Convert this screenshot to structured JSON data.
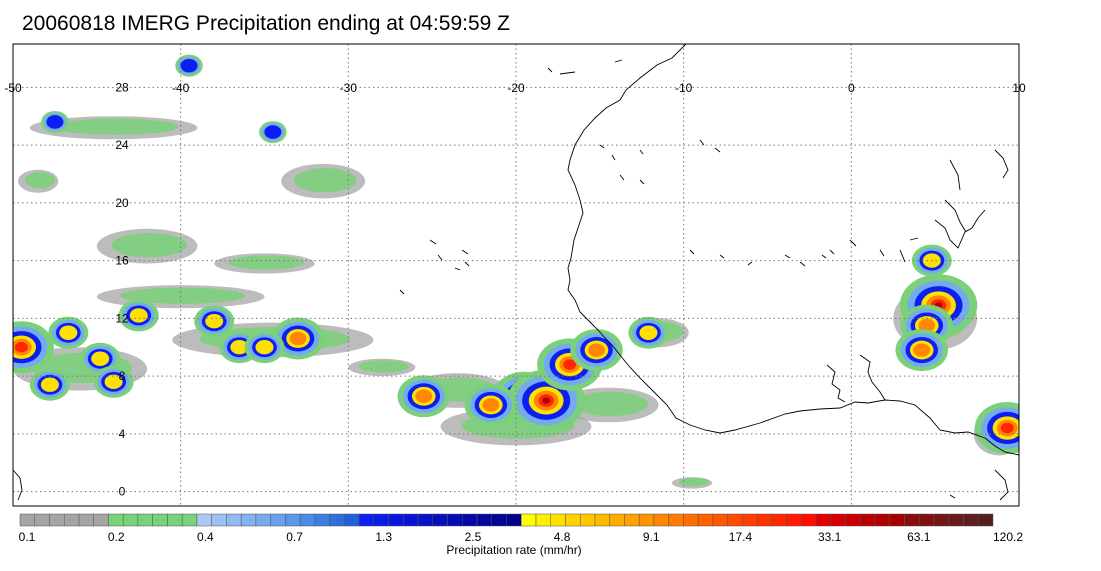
{
  "title": "20060818 IMERG Precipitation ending at 04:59:59 Z",
  "map": {
    "lon_range": [
      -50,
      10
    ],
    "lat_range": [
      -1,
      31
    ],
    "lon_ticks": [
      "-50",
      "-40",
      "-30",
      "-20",
      "-10",
      "0",
      "10"
    ],
    "lat_ticks": [
      "28",
      "24",
      "20",
      "16",
      "12",
      "8",
      "4",
      "0"
    ],
    "grid": "dotted",
    "coastline_color": "#000000"
  },
  "colorbar": {
    "label": "Precipitation rate (mm/hr)",
    "tick_labels": [
      "0.1",
      "0.2",
      "0.4",
      "0.7",
      "1.3",
      "2.5",
      "4.8",
      "9.1",
      "17.4",
      "33.1",
      "63.1",
      "120.2"
    ],
    "colors": [
      "#a5a5a5",
      "#a5a5a5",
      "#a5a5a5",
      "#a5a5a5",
      "#a5a5a5",
      "#a5a5a5",
      "#7ad17a",
      "#7ad17a",
      "#7ad17a",
      "#7ad17a",
      "#7ad17a",
      "#7ad17a",
      "#a9c8f5",
      "#9cc2f5",
      "#8fbaf3",
      "#83b2f1",
      "#76aaee",
      "#69a2ec",
      "#5a97ea",
      "#4b8be6",
      "#3c7ee2",
      "#2e6fde",
      "#2360db",
      "#0b1ff2",
      "#0a1be8",
      "#0917dd",
      "#0814d3",
      "#0711c8",
      "#060ebd",
      "#050bb3",
      "#0408a8",
      "#03069f",
      "#020495",
      "#01028a",
      "#ffff00",
      "#ffef00",
      "#ffe100",
      "#ffd400",
      "#ffc700",
      "#ffb900",
      "#ffad00",
      "#ffa100",
      "#ff9400",
      "#ff8700",
      "#ff7b00",
      "#ff6e00",
      "#ff6200",
      "#ff5600",
      "#ff4a00",
      "#ff3e00",
      "#ff3200",
      "#ff2600",
      "#ff1a00",
      "#ff0e00",
      "#e00000",
      "#d40000",
      "#c80000",
      "#bc0000",
      "#b00000",
      "#a40000",
      "#8b0a0a",
      "#801010",
      "#741515",
      "#6a1a1a",
      "#601c1c",
      "#561e1e"
    ]
  },
  "precipitation_cells": [
    {
      "lon": -19.5,
      "lat": 6.5,
      "intensity": 4
    },
    {
      "lon": -18.2,
      "lat": 6.3,
      "intensity": 5
    },
    {
      "lon": -21.5,
      "lat": 6.0,
      "intensity": 3
    },
    {
      "lon": -25.5,
      "lat": 6.6,
      "intensity": 3
    },
    {
      "lon": -16.8,
      "lat": 8.8,
      "intensity": 4
    },
    {
      "lon": -15.2,
      "lat": 9.8,
      "intensity": 3
    },
    {
      "lon": -12.1,
      "lat": 11.0,
      "intensity": 2
    },
    {
      "lon": 5.2,
      "lat": 12.9,
      "intensity": 5
    },
    {
      "lon": 4.5,
      "lat": 11.5,
      "intensity": 3
    },
    {
      "lon": 4.2,
      "lat": 9.8,
      "intensity": 3
    },
    {
      "lon": 9.3,
      "lat": 4.4,
      "intensity": 4
    },
    {
      "lon": 4.8,
      "lat": 16.0,
      "intensity": 2
    },
    {
      "lon": -49.5,
      "lat": 10.0,
      "intensity": 4
    },
    {
      "lon": -46.7,
      "lat": 11.0,
      "intensity": 2
    },
    {
      "lon": -42.5,
      "lat": 12.2,
      "intensity": 2
    },
    {
      "lon": -38.0,
      "lat": 11.8,
      "intensity": 2
    },
    {
      "lon": -36.5,
      "lat": 10.0,
      "intensity": 2
    },
    {
      "lon": -33.0,
      "lat": 10.6,
      "intensity": 3
    },
    {
      "lon": -35.0,
      "lat": 10.0,
      "intensity": 2
    },
    {
      "lon": -44.8,
      "lat": 9.2,
      "intensity": 2
    },
    {
      "lon": -47.8,
      "lat": 7.4,
      "intensity": 2
    },
    {
      "lon": -44.0,
      "lat": 7.6,
      "intensity": 2
    },
    {
      "lon": -39.5,
      "lat": 29.5,
      "intensity": 1
    },
    {
      "lon": -34.5,
      "lat": 24.9,
      "intensity": 1
    },
    {
      "lon": -47.5,
      "lat": 25.6,
      "intensity": 1
    }
  ],
  "light_rain_areas": [
    {
      "lon": -20.0,
      "lat": 4.5,
      "rx": 4.5,
      "ry": 1.3
    },
    {
      "lon": -14.5,
      "lat": 6.0,
      "rx": 3.0,
      "ry": 1.2
    },
    {
      "lon": -28.0,
      "lat": 8.6,
      "rx": 2.0,
      "ry": 0.6
    },
    {
      "lon": -44.0,
      "lat": 25.2,
      "rx": 5.0,
      "ry": 0.8
    },
    {
      "lon": -35.0,
      "lat": 15.8,
      "rx": 3.0,
      "ry": 0.7
    },
    {
      "lon": -40.0,
      "lat": 13.5,
      "rx": 5.0,
      "ry": 0.8
    },
    {
      "lon": -34.5,
      "lat": 10.5,
      "rx": 6.0,
      "ry": 1.2
    },
    {
      "lon": -46.0,
      "lat": 8.5,
      "rx": 4.0,
      "ry": 1.5
    },
    {
      "lon": -23.5,
      "lat": 7.0,
      "rx": 3.0,
      "ry": 1.2
    },
    {
      "lon": 5.0,
      "lat": 12.0,
      "rx": 2.5,
      "ry": 2.2
    },
    {
      "lon": -11.5,
      "lat": 11.0,
      "rx": 1.8,
      "ry": 1.0
    },
    {
      "lon": 8.8,
      "lat": 4.0,
      "rx": 1.5,
      "ry": 1.5
    },
    {
      "lon": -42.0,
      "lat": 17.0,
      "rx": 3.0,
      "ry": 1.2
    },
    {
      "lon": -48.5,
      "lat": 21.5,
      "rx": 1.2,
      "ry": 0.8
    },
    {
      "lon": -31.5,
      "lat": 21.5,
      "rx": 2.5,
      "ry": 1.2
    },
    {
      "lon": -9.5,
      "lat": 0.6,
      "rx": 1.2,
      "ry": 0.4
    }
  ]
}
